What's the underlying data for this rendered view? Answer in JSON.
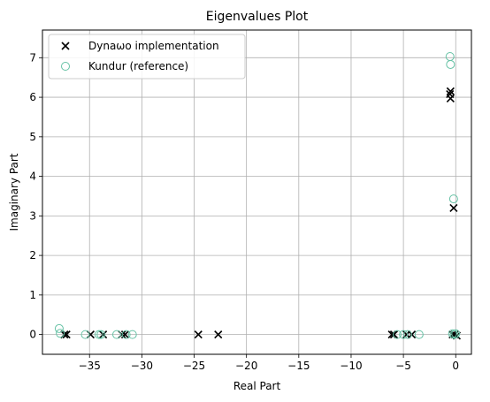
{
  "chart_data": {
    "type": "scatter",
    "title": "Eigenvalues Plot",
    "xlabel": "Real Part",
    "ylabel": "Imaginary Part",
    "xlim": [
      -39.5,
      1.5
    ],
    "ylim": [
      -0.5,
      7.7
    ],
    "xticks": [
      -35,
      -30,
      -25,
      -20,
      -15,
      -10,
      -5,
      0
    ],
    "yticks": [
      0,
      1,
      2,
      3,
      4,
      5,
      6,
      7
    ],
    "xtick_labels": [
      "−35",
      "−30",
      "−25",
      "−20",
      "−15",
      "−10",
      "−5",
      "0"
    ],
    "ytick_labels": [
      "0",
      "1",
      "2",
      "3",
      "4",
      "5",
      "6",
      "7"
    ],
    "grid": true,
    "legend_position": "top-left",
    "series": [
      {
        "name": "Dynaωo implementation",
        "marker": "x",
        "color": "#000000",
        "points": [
          {
            "x": -37.4,
            "y": 0.0
          },
          {
            "x": -37.2,
            "y": 0.0
          },
          {
            "x": -34.9,
            "y": 0.0
          },
          {
            "x": -33.7,
            "y": 0.0
          },
          {
            "x": -31.9,
            "y": 0.0
          },
          {
            "x": -31.6,
            "y": 0.0
          },
          {
            "x": -24.6,
            "y": 0.0
          },
          {
            "x": -22.7,
            "y": 0.0
          },
          {
            "x": -6.1,
            "y": 0.0
          },
          {
            "x": -5.9,
            "y": 0.0
          },
          {
            "x": -4.7,
            "y": 0.0
          },
          {
            "x": -4.2,
            "y": 0.0
          },
          {
            "x": -0.5,
            "y": 6.15
          },
          {
            "x": -0.55,
            "y": 6.08
          },
          {
            "x": -0.5,
            "y": 5.97
          },
          {
            "x": -0.2,
            "y": 3.2
          },
          {
            "x": -0.3,
            "y": 0.0
          },
          {
            "x": -0.1,
            "y": 0.0
          },
          {
            "x": 0.1,
            "y": -0.03
          }
        ]
      },
      {
        "name": "Kundur (reference)",
        "marker": "o",
        "color": "#66c2a5",
        "points": [
          {
            "x": -37.9,
            "y": 0.15
          },
          {
            "x": -37.8,
            "y": 0.03
          },
          {
            "x": -35.4,
            "y": 0.0
          },
          {
            "x": -34.1,
            "y": 0.0
          },
          {
            "x": -33.9,
            "y": 0.0
          },
          {
            "x": -32.4,
            "y": 0.0
          },
          {
            "x": -31.5,
            "y": 0.0
          },
          {
            "x": -30.9,
            "y": 0.0
          },
          {
            "x": -5.6,
            "y": 0.0
          },
          {
            "x": -5.0,
            "y": 0.0
          },
          {
            "x": -4.6,
            "y": 0.0
          },
          {
            "x": -3.5,
            "y": 0.0
          },
          {
            "x": -0.55,
            "y": 7.03
          },
          {
            "x": -0.5,
            "y": 6.83
          },
          {
            "x": -0.2,
            "y": 3.43
          },
          {
            "x": -0.3,
            "y": 0.02
          },
          {
            "x": -0.15,
            "y": 0.0
          },
          {
            "x": 0.0,
            "y": 0.02
          }
        ]
      }
    ]
  }
}
